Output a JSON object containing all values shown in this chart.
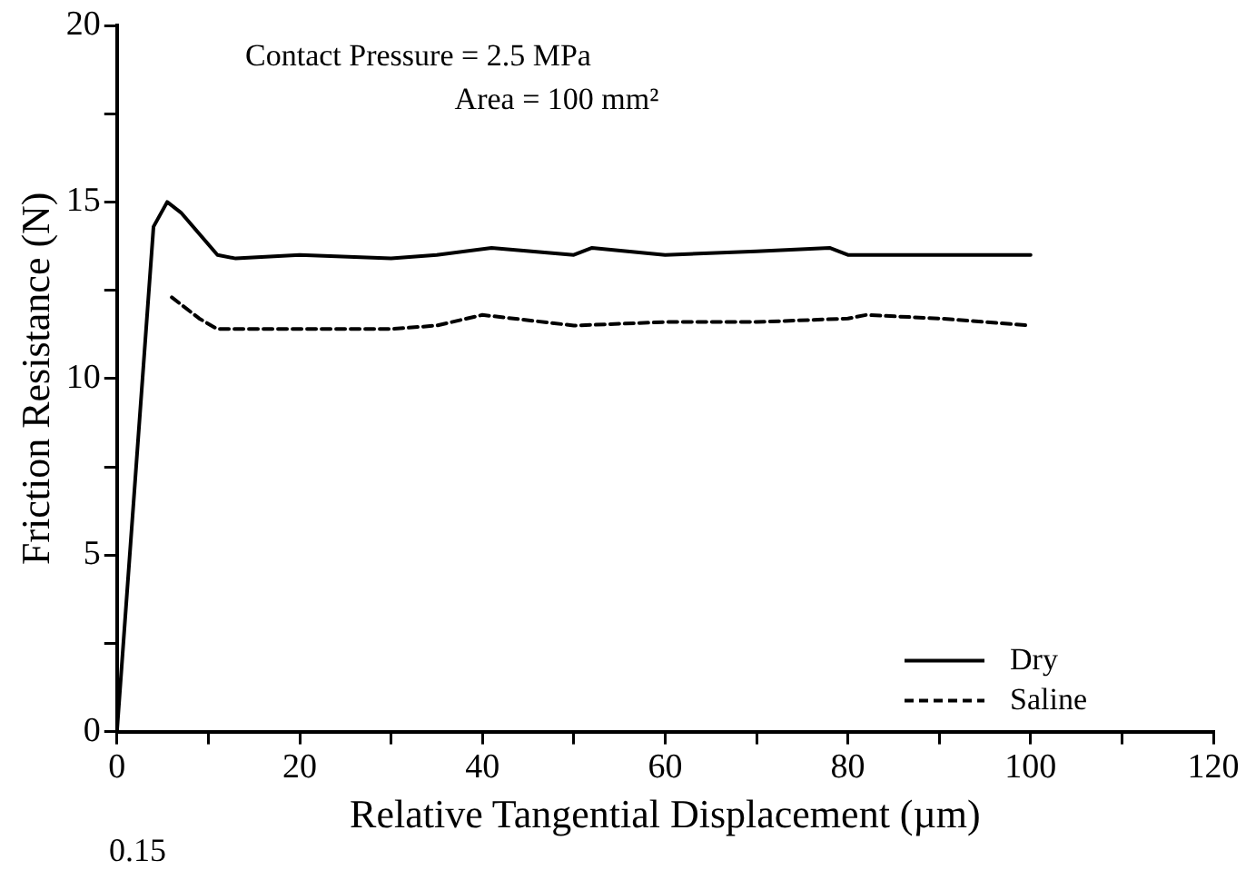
{
  "chart_data": {
    "type": "line",
    "xlabel": "Relative Tangential Displacement (µm)",
    "ylabel": "Friction Resistance (N)",
    "annotations": [
      "Contact Pressure = 2.5 MPa",
      "Area = 100 mm²",
      "0.15"
    ],
    "xlim": [
      0,
      120
    ],
    "xticks": [
      0,
      {
        "value": 10,
        "label": null
      },
      20,
      {
        "value": 30,
        "label": null
      },
      40,
      {
        "value": 50,
        "label": null
      },
      60,
      {
        "value": 70,
        "label": null
      },
      80,
      {
        "value": 90,
        "label": null
      },
      100,
      {
        "value": 110,
        "label": null
      },
      120
    ],
    "ylim": [
      0,
      20
    ],
    "yticks": [
      0,
      {
        "value": 2.5,
        "label": null
      },
      5,
      {
        "value": 7.5,
        "label": null
      },
      10,
      {
        "value": 12.5,
        "label": null
      },
      15,
      {
        "value": 17.5,
        "label": null
      },
      20
    ],
    "grid": false,
    "legend": "bottom right",
    "marker": "none",
    "series": [
      {
        "name": "Dry",
        "color": "#000000",
        "line_style": "solid",
        "x": [
          0,
          4,
          5.5,
          7,
          11,
          13,
          20,
          30,
          35,
          41,
          50,
          52,
          60,
          70,
          78,
          80,
          90,
          100
        ],
        "values": [
          0,
          14.3,
          15,
          14.7,
          13.5,
          13.4,
          13.5,
          13.4,
          13.5,
          13.7,
          13.5,
          13.7,
          13.5,
          13.6,
          13.7,
          13.5,
          13.5,
          13.5
        ]
      },
      {
        "name": "Saline",
        "color": "#000000",
        "line_style": "dashed",
        "x": [
          6,
          9,
          11,
          20,
          30,
          35,
          40,
          50,
          60,
          70,
          80,
          82,
          90,
          100
        ],
        "values": [
          12.3,
          11.7,
          11.4,
          11.4,
          11.4,
          11.5,
          11.8,
          11.5,
          11.6,
          11.6,
          11.7,
          11.8,
          11.7,
          11.5
        ]
      }
    ]
  }
}
